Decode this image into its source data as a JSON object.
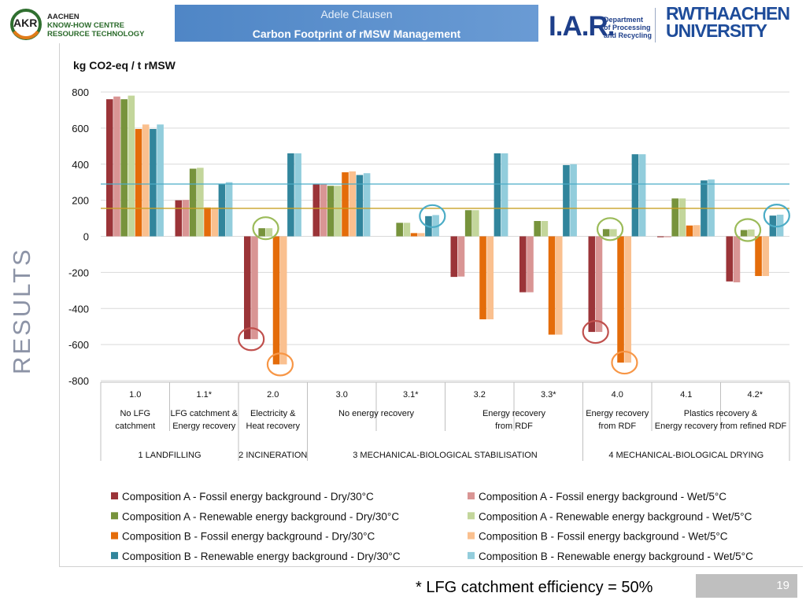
{
  "header": {
    "logo_left": {
      "mark": "AKR",
      "line1": "AACHEN",
      "line2": "KNOW-HOW CENTRE",
      "line3": "RESOURCE TECHNOLOGY"
    },
    "author": "Adele Clausen",
    "title": "Carbon Footprint of rMSW Management",
    "iar": {
      "mark": "I.A.R.",
      "dept1": "Department",
      "dept2": "of Processing",
      "dept3": "and Recycling"
    },
    "university": {
      "line1": "RWTHAACHEN",
      "line2": "UNIVERSITY"
    }
  },
  "side_label": "RESULTS",
  "footnote": "* LFG catchment efficiency = 50%",
  "page_number": "19",
  "chart_data": {
    "type": "bar",
    "title": "kg CO2-eq / t rMSW",
    "ylim": [
      -800,
      800
    ],
    "yticks": [
      800,
      600,
      400,
      200,
      0,
      -200,
      -400,
      -600,
      -800
    ],
    "categories": [
      {
        "code": "1.0",
        "desc1": "No LFG",
        "desc2": "catchment"
      },
      {
        "code": "1.1*",
        "desc1": "LFG catchment &",
        "desc2": "Energy recovery"
      },
      {
        "code": "2.0",
        "desc1": "Electricity  &",
        "desc2": "Heat recovery"
      },
      {
        "code": "3.0",
        "desc1": "",
        "desc2": ""
      },
      {
        "code": "3.1*",
        "desc1": "",
        "desc2": ""
      },
      {
        "code": "3.2",
        "desc1": "",
        "desc2": ""
      },
      {
        "code": "3.3*",
        "desc1": "",
        "desc2": ""
      },
      {
        "code": "4.0",
        "desc1": "Energy recovery",
        "desc2": "from RDF"
      },
      {
        "code": "4.1",
        "desc1": "",
        "desc2": ""
      },
      {
        "code": "4.2*",
        "desc1": "",
        "desc2": ""
      }
    ],
    "spanning_descriptions": [
      {
        "from": 3,
        "to": 4,
        "text": "No energy recovery"
      },
      {
        "from": 5,
        "to": 6,
        "line1": "Energy recovery",
        "line2": "from RDF"
      },
      {
        "from": 8,
        "to": 9,
        "line1": "Plastics recovery &",
        "line2": "Energy recovery from refined RDF"
      }
    ],
    "groups": [
      {
        "from": 0,
        "to": 1,
        "label": "1 LANDFILLING"
      },
      {
        "from": 2,
        "to": 2,
        "label": "2 INCINERATION"
      },
      {
        "from": 3,
        "to": 6,
        "label": "3 MECHANICAL-BIOLOGICAL STABILISATION"
      },
      {
        "from": 7,
        "to": 9,
        "label": "4 MECHANICAL-BIOLOGICAL DRYING"
      }
    ],
    "series": [
      {
        "name": "Composition A - Fossil energy background - Dry/30°C",
        "color": "#9b3438",
        "values": [
          760,
          200,
          -570,
          290,
          0,
          -225,
          -310,
          -530,
          -5,
          -250
        ]
      },
      {
        "name": "Composition A - Fossil energy background -  Wet/5°C",
        "color": "#d99594",
        "values": [
          775,
          202,
          -570,
          292,
          0,
          -223,
          -310,
          -530,
          -5,
          -255
        ]
      },
      {
        "name": "Composition A - Renewable energy background - Dry/30°C",
        "color": "#77933c",
        "values": [
          760,
          375,
          45,
          280,
          75,
          145,
          85,
          40,
          210,
          35
        ]
      },
      {
        "name": "Composition A - Renewable energy background -  Wet/5°C",
        "color": "#c3d69b",
        "values": [
          780,
          380,
          45,
          280,
          75,
          145,
          85,
          40,
          210,
          38
        ]
      },
      {
        "name": "Composition B - Fossil energy background - Dry/30°C",
        "color": "#e46c0a",
        "values": [
          595,
          160,
          -710,
          355,
          18,
          -460,
          -545,
          -700,
          60,
          -220
        ]
      },
      {
        "name": "Composition B - Fossil energy background -  Wet/5°C",
        "color": "#fac08f",
        "values": [
          620,
          160,
          -710,
          360,
          18,
          -460,
          -545,
          -700,
          62,
          -220
        ]
      },
      {
        "name": "Composition B - Renewable energy background - Dry/30°C",
        "color": "#31859c",
        "values": [
          595,
          290,
          460,
          340,
          112,
          460,
          395,
          455,
          310,
          115
        ]
      },
      {
        "name": "Composition B - Renewable energy background -  Wet/5°C",
        "color": "#92cddc",
        "values": [
          620,
          300,
          460,
          350,
          118,
          460,
          400,
          455,
          315,
          120
        ]
      }
    ],
    "reference_lines": [
      {
        "value": 290,
        "color": "#4bacc6"
      },
      {
        "value": 155,
        "color": "#c8a024"
      }
    ],
    "highlight_circles": [
      {
        "category": 2,
        "series": 0,
        "value": -570,
        "color": "#c0504d"
      },
      {
        "category": 2,
        "series": 2,
        "value": 45,
        "color": "#9bbb59"
      },
      {
        "category": 2,
        "series": 4,
        "value": -710,
        "color": "#f79646"
      },
      {
        "category": 4,
        "series": 6,
        "value": 112,
        "color": "#4bacc6"
      },
      {
        "category": 7,
        "series": 0,
        "value": -530,
        "color": "#c0504d"
      },
      {
        "category": 7,
        "series": 2,
        "value": 40,
        "color": "#9bbb59"
      },
      {
        "category": 7,
        "series": 4,
        "value": -700,
        "color": "#f79646"
      },
      {
        "category": 9,
        "series": 2,
        "value": 35,
        "color": "#9bbb59"
      },
      {
        "category": 9,
        "series": 6,
        "value": 115,
        "color": "#4bacc6"
      }
    ],
    "legend_position": "bottom"
  }
}
